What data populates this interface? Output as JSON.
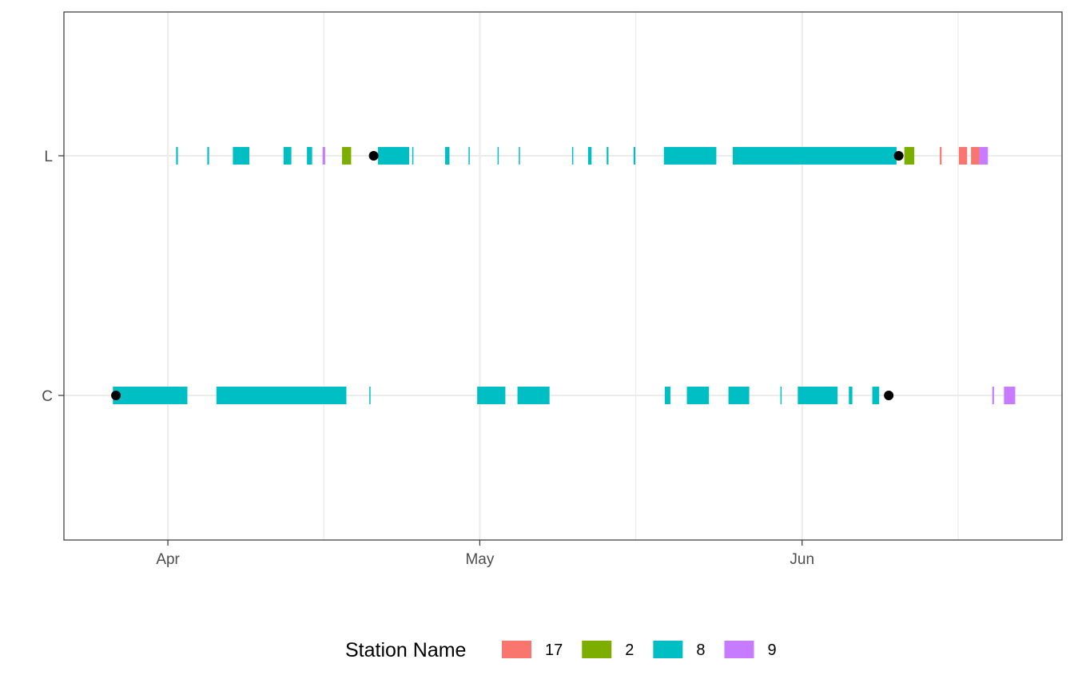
{
  "chart_data": {
    "type": "timeline",
    "x_axis": {
      "type": "date",
      "range": [
        "2024-03-22",
        "2024-06-26"
      ],
      "ticks": [
        {
          "date": "2024-04-01",
          "label": "Apr"
        },
        {
          "date": "2024-05-01",
          "label": "May"
        },
        {
          "date": "2024-06-01",
          "label": "Jun"
        }
      ],
      "minor_ticks": [
        "2024-04-16",
        "2024-05-16",
        "2024-06-16"
      ]
    },
    "y_axis": {
      "categories": [
        "C",
        "L"
      ]
    },
    "grid": true,
    "legend": {
      "title": "Station Name",
      "placement": "bottom",
      "entries": [
        {
          "label": "17",
          "color": "#F8766D"
        },
        {
          "label": "2",
          "color": "#7CAE00"
        },
        {
          "label": "8",
          "color": "#00BFC4"
        },
        {
          "label": "9",
          "color": "#C77CFF"
        }
      ]
    },
    "detections": [
      {
        "row": "L",
        "station": "8",
        "start": "2024-04-01T19:00",
        "end": "2024-04-01T23:00"
      },
      {
        "row": "L",
        "station": "8",
        "start": "2024-04-04T19:00",
        "end": "2024-04-04T23:00"
      },
      {
        "row": "L",
        "station": "8",
        "start": "2024-04-07T06:00",
        "end": "2024-04-08T20:00"
      },
      {
        "row": "L",
        "station": "8",
        "start": "2024-04-12T03:00",
        "end": "2024-04-12T21:00"
      },
      {
        "row": "L",
        "station": "8",
        "start": "2024-04-14T09:00",
        "end": "2024-04-14T21:00"
      },
      {
        "row": "L",
        "station": "9",
        "start": "2024-04-15T21:00",
        "end": "2024-04-16T03:00"
      },
      {
        "row": "L",
        "station": "2",
        "start": "2024-04-17T18:00",
        "end": "2024-04-18T15:00"
      },
      {
        "row": "L",
        "station": "8",
        "start": "2024-04-21T05:00",
        "end": "2024-04-24T05:00"
      },
      {
        "row": "L",
        "station": "8",
        "start": "2024-04-24T12:00",
        "end": "2024-04-24T14:00"
      },
      {
        "row": "L",
        "station": "8",
        "start": "2024-04-27T16:00",
        "end": "2024-04-28T02:00"
      },
      {
        "row": "L",
        "station": "8",
        "start": "2024-04-29T22:00",
        "end": "2024-04-30T00:00"
      },
      {
        "row": "L",
        "station": "8",
        "start": "2024-05-02T17:00",
        "end": "2024-05-02T19:00"
      },
      {
        "row": "L",
        "station": "8",
        "start": "2024-05-04T18:00",
        "end": "2024-05-04T20:00"
      },
      {
        "row": "L",
        "station": "8",
        "start": "2024-05-09T21:00",
        "end": "2024-05-09T23:00"
      },
      {
        "row": "L",
        "station": "8",
        "start": "2024-05-11T10:00",
        "end": "2024-05-11T18:00"
      },
      {
        "row": "L",
        "station": "8",
        "start": "2024-05-13T05:00",
        "end": "2024-05-13T09:00"
      },
      {
        "row": "L",
        "station": "8",
        "start": "2024-05-15T19:00",
        "end": "2024-05-15T23:00"
      },
      {
        "row": "L",
        "station": "8",
        "start": "2024-05-18T17:00",
        "end": "2024-05-23T18:00"
      },
      {
        "row": "L",
        "station": "8",
        "start": "2024-05-25T08:00",
        "end": "2024-06-10T02:00"
      },
      {
        "row": "L",
        "station": "2",
        "start": "2024-06-10T20:00",
        "end": "2024-06-11T19:00"
      },
      {
        "row": "L",
        "station": "17",
        "start": "2024-06-14T06:00",
        "end": "2024-06-14T10:00"
      },
      {
        "row": "L",
        "station": "17",
        "start": "2024-06-16T02:00",
        "end": "2024-06-16T14:00"
      },
      {
        "row": "L",
        "station": "17",
        "start": "2024-06-16T14:00",
        "end": "2024-06-16T21:00"
      },
      {
        "row": "L",
        "station": "17",
        "start": "2024-06-17T06:00",
        "end": "2024-06-18T01:00"
      },
      {
        "row": "L",
        "station": "9",
        "start": "2024-06-18T01:00",
        "end": "2024-06-18T21:00"
      },
      {
        "row": "C",
        "station": "8",
        "start": "2024-03-26T17:00",
        "end": "2024-04-02T21:00"
      },
      {
        "row": "C",
        "station": "8",
        "start": "2024-04-05T16:00",
        "end": "2024-04-18T04:00"
      },
      {
        "row": "C",
        "station": "8",
        "start": "2024-04-20T09:00",
        "end": "2024-04-20T11:00"
      },
      {
        "row": "C",
        "station": "8",
        "start": "2024-04-30T18:00",
        "end": "2024-05-03T11:00"
      },
      {
        "row": "C",
        "station": "8",
        "start": "2024-05-04T15:00",
        "end": "2024-05-07T17:00"
      },
      {
        "row": "C",
        "station": "8",
        "start": "2024-05-18T19:00",
        "end": "2024-05-19T08:00"
      },
      {
        "row": "C",
        "station": "8",
        "start": "2024-05-20T22:00",
        "end": "2024-05-23T01:00"
      },
      {
        "row": "C",
        "station": "8",
        "start": "2024-05-24T22:00",
        "end": "2024-05-26T22:00"
      },
      {
        "row": "C",
        "station": "8",
        "start": "2024-05-29T22:00",
        "end": "2024-05-30T00:00"
      },
      {
        "row": "C",
        "station": "8",
        "start": "2024-05-31T14:00",
        "end": "2024-06-04T10:00"
      },
      {
        "row": "C",
        "station": "8",
        "start": "2024-06-05T12:00",
        "end": "2024-06-05T20:00"
      },
      {
        "row": "C",
        "station": "8",
        "start": "2024-06-07T18:00",
        "end": "2024-06-08T10:00"
      },
      {
        "row": "C",
        "station": "9",
        "start": "2024-06-19T07:00",
        "end": "2024-06-19T11:00"
      },
      {
        "row": "C",
        "station": "9",
        "start": "2024-06-20T10:00",
        "end": "2024-06-21T12:00"
      }
    ],
    "points": [
      {
        "row": "L",
        "date": "2024-04-20T19:00"
      },
      {
        "row": "L",
        "date": "2024-06-10T07:00"
      },
      {
        "row": "C",
        "date": "2024-03-27T00:00"
      },
      {
        "row": "C",
        "date": "2024-06-09T08:00"
      }
    ]
  }
}
